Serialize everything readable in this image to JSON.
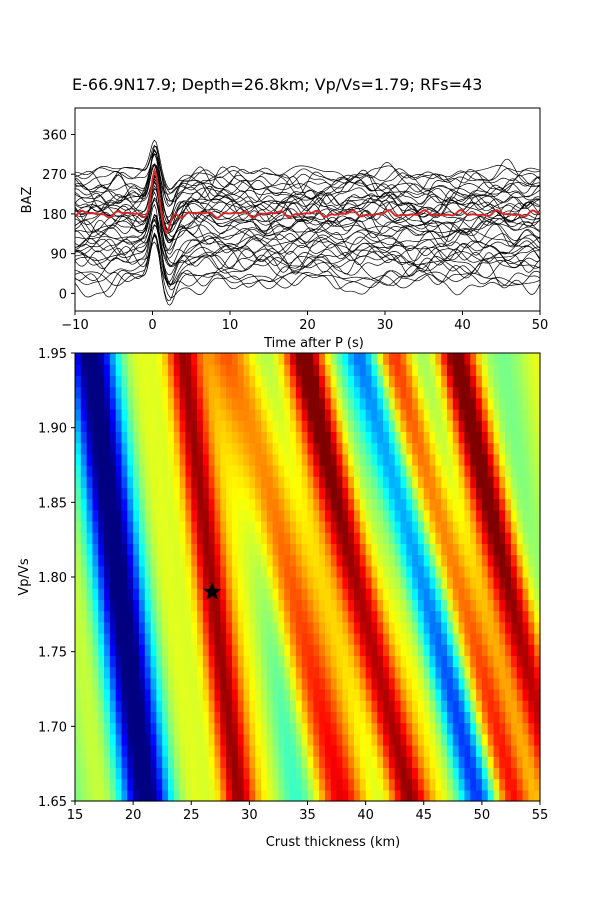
{
  "figure": {
    "title": "E-66.9N17.9; Depth=26.8km; Vp/Vs=1.79; RFs=43"
  },
  "chart_data": [
    {
      "type": "line",
      "name": "receiver-functions",
      "xlabel": "Time after P (s)",
      "ylabel": "BAZ",
      "xlim": [
        -10,
        50
      ],
      "ylim": [
        -40,
        420
      ],
      "xticks": [
        "−10",
        "0",
        "10",
        "20",
        "30",
        "40",
        "50"
      ],
      "xtick_values": [
        -10,
        0,
        10,
        20,
        30,
        40,
        50
      ],
      "yticks": [
        "0",
        "90",
        "180",
        "270",
        "360"
      ],
      "ytick_values": [
        0,
        90,
        180,
        270,
        360
      ],
      "trace_count": 43,
      "trace_color": "#000000",
      "stack_color": "#d62728",
      "stack_baseline": 180,
      "trace_baz_range": [
        20,
        280
      ],
      "direct_p_peak_time": 0.3,
      "grid": false
    },
    {
      "type": "heatmap",
      "name": "h-k-stacking",
      "xlabel": "Crust thickness (km)",
      "ylabel": "Vp/Vs",
      "xlim": [
        15,
        55
      ],
      "ylim": [
        1.65,
        1.95
      ],
      "xticks": [
        "15",
        "20",
        "25",
        "30",
        "35",
        "40",
        "45",
        "50",
        "55"
      ],
      "xtick_values": [
        15,
        20,
        25,
        30,
        35,
        40,
        45,
        50,
        55
      ],
      "yticks": [
        "1.65",
        "1.70",
        "1.75",
        "1.80",
        "1.85",
        "1.90",
        "1.95"
      ],
      "ytick_values": [
        1.65,
        1.7,
        1.75,
        1.8,
        1.85,
        1.9,
        1.95
      ],
      "colormap": "jet",
      "best_fit": {
        "thickness": 26.8,
        "vpvs": 1.79,
        "marker": "star"
      },
      "grid": false
    }
  ]
}
